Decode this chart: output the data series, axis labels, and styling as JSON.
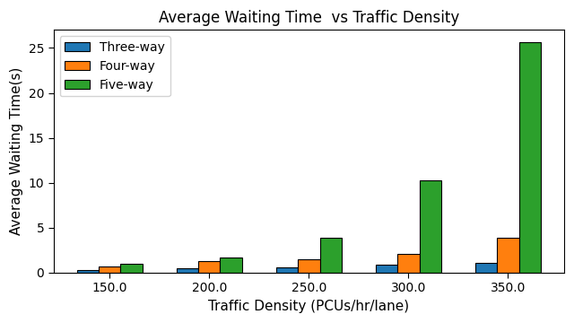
{
  "categories": [
    150.0,
    200.0,
    250.0,
    300.0,
    350.0
  ],
  "three_way": [
    0.3,
    0.5,
    0.6,
    0.9,
    1.1
  ],
  "four_way": [
    0.7,
    1.3,
    1.5,
    2.1,
    3.9
  ],
  "five_way": [
    1.0,
    1.7,
    3.9,
    10.3,
    25.6
  ],
  "colors": {
    "three_way": "#1f77b4",
    "four_way": "#ff7f0e",
    "five_way": "#2ca02c"
  },
  "title": "Average Waiting Time  vs Traffic Density",
  "xlabel": "Traffic Density (PCUs/hr/lane)",
  "ylabel": "Average Waiting Time(s)",
  "legend_labels": [
    "Three-way",
    "Four-way",
    "Five-way"
  ],
  "ylim": [
    0,
    27
  ],
  "yticks": [
    0,
    5,
    10,
    15,
    20,
    25
  ],
  "bar_width": 0.22,
  "title_fontsize": 12,
  "label_fontsize": 11,
  "tick_fontsize": 10,
  "legend_fontsize": 10,
  "figure_width": 6.4,
  "figure_height": 3.6,
  "dpi": 100
}
